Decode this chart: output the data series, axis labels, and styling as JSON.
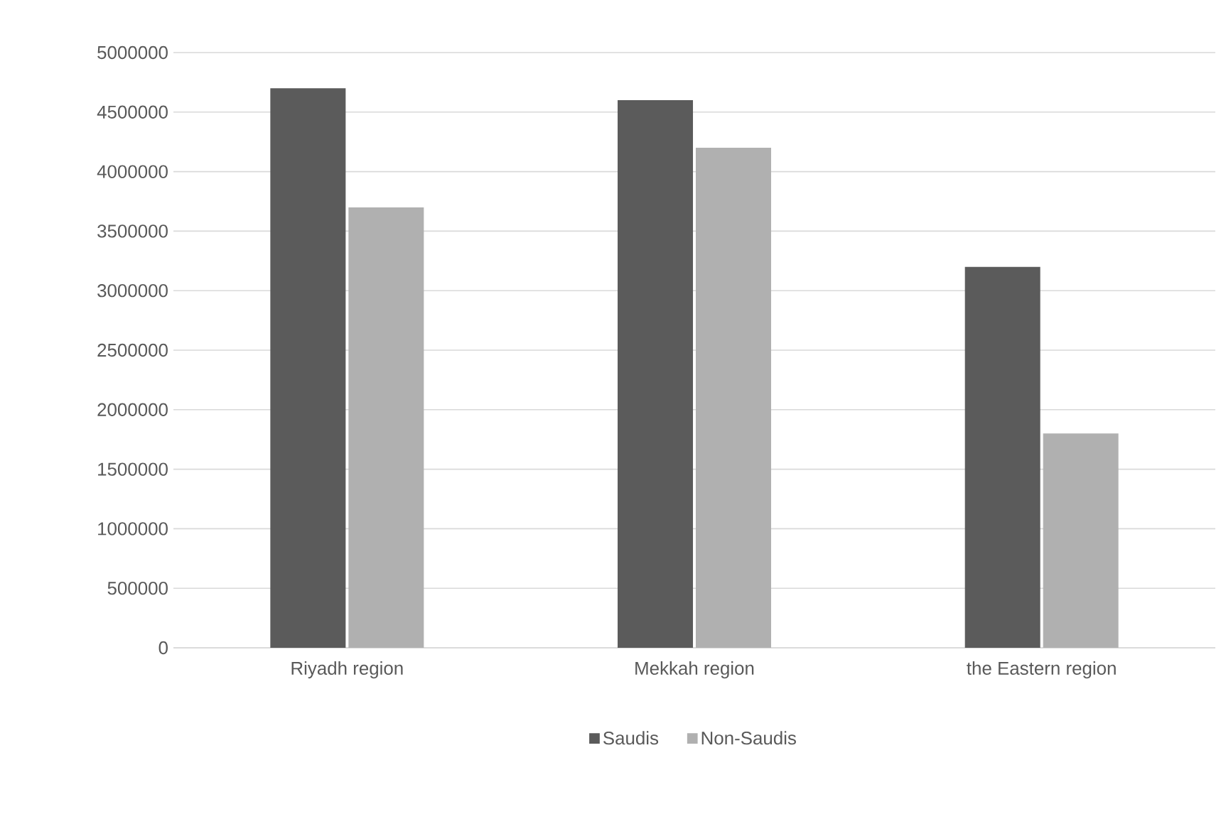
{
  "chart_data": {
    "type": "bar",
    "categories": [
      "Riyadh region",
      "Mekkah region",
      "the Eastern region"
    ],
    "series": [
      {
        "name": "Saudis",
        "color": "#5b5b5b",
        "values": [
          4700000,
          4600000,
          3200000
        ]
      },
      {
        "name": "Non-Saudis",
        "color": "#b0b0b0",
        "values": [
          3700000,
          4200000,
          1800000
        ]
      }
    ],
    "ylim": [
      0,
      5000000
    ],
    "yticks": [
      0,
      500000,
      1000000,
      1500000,
      2000000,
      2500000,
      3000000,
      3500000,
      4000000,
      4500000,
      5000000
    ],
    "grid": "y",
    "legend": "bottom"
  }
}
